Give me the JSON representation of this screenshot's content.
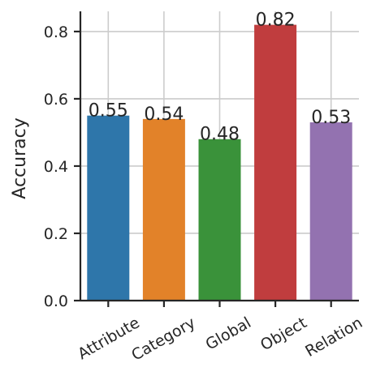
{
  "chart_data": {
    "type": "bar",
    "title": "",
    "xlabel": "",
    "ylabel": "Accuracy",
    "categories": [
      "Attribute",
      "Category",
      "Global",
      "Object",
      "Relation"
    ],
    "values": [
      0.55,
      0.54,
      0.48,
      0.82,
      0.53
    ],
    "value_labels": [
      "0.55",
      "0.54",
      "0.48",
      "0.82",
      "0.53"
    ],
    "ylim": [
      0,
      0.86
    ],
    "yticks": [
      0.0,
      0.2,
      0.4,
      0.6,
      0.8
    ],
    "ytick_labels": [
      "0.0",
      "0.2",
      "0.4",
      "0.6",
      "0.8"
    ],
    "grid": true,
    "legend": "none",
    "colors": [
      "#2e76aa",
      "#e28229",
      "#3a923a",
      "#c03d3e",
      "#9372b0"
    ]
  }
}
